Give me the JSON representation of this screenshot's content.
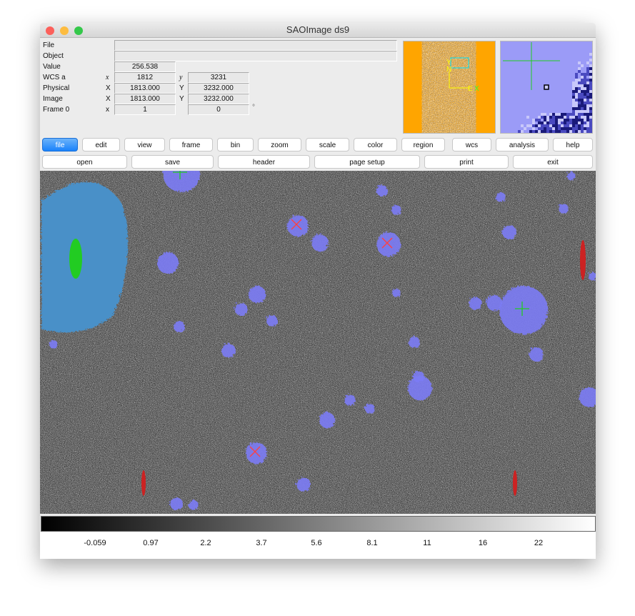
{
  "window": {
    "title": "SAOImage ds9"
  },
  "info": {
    "file": {
      "label": "File",
      "value": ""
    },
    "object": {
      "label": "Object",
      "value": ""
    },
    "value": {
      "label": "Value",
      "value": "256.538"
    },
    "wcs": {
      "label": "WCS a",
      "x_axis": "x",
      "x": "1812",
      "y_axis": "y",
      "y": "3231"
    },
    "physical": {
      "label": "Physical",
      "x_axis": "X",
      "x": "1813.000",
      "y_axis": "Y",
      "y": "3232.000"
    },
    "image": {
      "label": "Image",
      "x_axis": "X",
      "x": "1813.000",
      "y_axis": "Y",
      "y": "3232.000"
    },
    "frame": {
      "label": "Frame 0",
      "x_axis": "x",
      "x": "1",
      "y": "0",
      "unit": "°"
    }
  },
  "panner": {
    "compass": {
      "y": "Y",
      "n": "N",
      "e": "E",
      "x": "X"
    }
  },
  "menu": [
    "file",
    "edit",
    "view",
    "frame",
    "bin",
    "zoom",
    "scale",
    "color",
    "region",
    "wcs",
    "analysis",
    "help"
  ],
  "menu_active": "file",
  "file_buttons": [
    "open",
    "save",
    "header",
    "page setup",
    "print",
    "exit"
  ],
  "colorbar": {
    "labels": [
      "-0.059",
      "0.97",
      "2.2",
      "3.7",
      "5.6",
      "8.1",
      "11",
      "16",
      "22"
    ]
  },
  "colors": {
    "active_button": "#1a82fb",
    "panner_bg": "#ffa500",
    "source": "#7b7bf5",
    "region_cross": "#ff3333",
    "extended": "#4a90c8",
    "marker": "#22cc22"
  }
}
